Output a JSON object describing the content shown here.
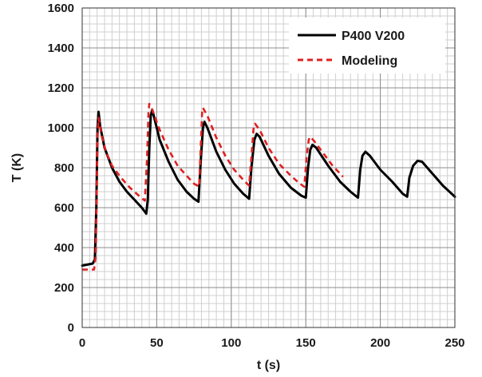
{
  "chart_data": {
    "type": "line",
    "xlabel": "t (s)",
    "ylabel": "T (K)",
    "xlim": [
      0,
      250
    ],
    "ylim": [
      0,
      1600
    ],
    "xticks": [
      0,
      50,
      100,
      150,
      200,
      250
    ],
    "yticks": [
      0,
      200,
      400,
      600,
      800,
      1000,
      1200,
      1400,
      1600
    ],
    "grid": true,
    "legend_position": "top-right",
    "series": [
      {
        "name": "P400 V200",
        "color": "#000000",
        "style": "solid",
        "points": [
          [
            0,
            310
          ],
          [
            7,
            320
          ],
          [
            8.5,
            340
          ],
          [
            9.5,
            600
          ],
          [
            10.3,
            1000
          ],
          [
            11,
            1080
          ],
          [
            12,
            1010
          ],
          [
            15,
            900
          ],
          [
            20,
            800
          ],
          [
            25,
            730
          ],
          [
            30,
            680
          ],
          [
            35,
            640
          ],
          [
            40,
            600
          ],
          [
            43,
            570
          ],
          [
            44,
            640
          ],
          [
            45,
            900
          ],
          [
            46,
            1060
          ],
          [
            47,
            1090
          ],
          [
            48,
            1060
          ],
          [
            52,
            940
          ],
          [
            58,
            830
          ],
          [
            64,
            740
          ],
          [
            70,
            680
          ],
          [
            75,
            645
          ],
          [
            78,
            630
          ],
          [
            79.5,
            830
          ],
          [
            81,
            1000
          ],
          [
            82,
            1030
          ],
          [
            84,
            1000
          ],
          [
            90,
            880
          ],
          [
            96,
            790
          ],
          [
            102,
            720
          ],
          [
            108,
            670
          ],
          [
            112,
            645
          ],
          [
            113.5,
            800
          ],
          [
            115.5,
            940
          ],
          [
            117,
            970
          ],
          [
            119,
            955
          ],
          [
            125,
            860
          ],
          [
            132,
            770
          ],
          [
            140,
            700
          ],
          [
            147,
            660
          ],
          [
            150,
            650
          ],
          [
            151.5,
            800
          ],
          [
            153,
            890
          ],
          [
            154.5,
            915
          ],
          [
            157,
            900
          ],
          [
            165,
            810
          ],
          [
            173,
            730
          ],
          [
            180,
            680
          ],
          [
            185,
            650
          ],
          [
            186.5,
            790
          ],
          [
            188,
            860
          ],
          [
            190,
            880
          ],
          [
            193,
            860
          ],
          [
            200,
            790
          ],
          [
            208,
            730
          ],
          [
            215,
            670
          ],
          [
            218,
            655
          ],
          [
            219.5,
            750
          ],
          [
            222,
            810
          ],
          [
            225,
            835
          ],
          [
            228,
            830
          ],
          [
            235,
            770
          ],
          [
            242,
            710
          ],
          [
            250,
            655
          ]
        ]
      },
      {
        "name": "Modeling",
        "color": "#e02020",
        "style": "dashed",
        "points": [
          [
            0,
            290
          ],
          [
            8,
            290
          ],
          [
            9,
            350
          ],
          [
            9.8,
            700
          ],
          [
            10.3,
            950
          ],
          [
            11,
            1050
          ],
          [
            13,
            960
          ],
          [
            16,
            880
          ],
          [
            20,
            810
          ],
          [
            26,
            750
          ],
          [
            32,
            700
          ],
          [
            38,
            660
          ],
          [
            42,
            635
          ],
          [
            43.5,
            850
          ],
          [
            44.5,
            1080
          ],
          [
            45,
            1120
          ],
          [
            47,
            1090
          ],
          [
            52,
            990
          ],
          [
            58,
            890
          ],
          [
            64,
            810
          ],
          [
            70,
            760
          ],
          [
            75,
            720
          ],
          [
            78.5,
            705
          ],
          [
            79.5,
            900
          ],
          [
            80.5,
            1090
          ],
          [
            81,
            1100
          ],
          [
            84,
            1060
          ],
          [
            90,
            950
          ],
          [
            96,
            860
          ],
          [
            102,
            790
          ],
          [
            108,
            740
          ],
          [
            112,
            710
          ],
          [
            113.5,
            850
          ],
          [
            115,
            1000
          ],
          [
            116,
            1020
          ],
          [
            119,
            990
          ],
          [
            125,
            900
          ],
          [
            132,
            820
          ],
          [
            140,
            760
          ],
          [
            146,
            720
          ],
          [
            149,
            705
          ],
          [
            150.5,
            850
          ],
          [
            152,
            940
          ],
          [
            153,
            955
          ],
          [
            156,
            930
          ],
          [
            162,
            870
          ],
          [
            168,
            810
          ],
          [
            175,
            755
          ]
        ]
      }
    ]
  }
}
